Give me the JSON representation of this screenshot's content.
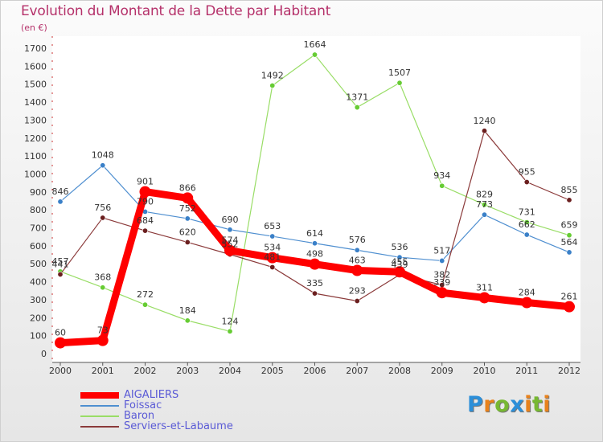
{
  "title": "Evolution du Montant de la Dette par Habitant",
  "subtitle": "(en €)",
  "logo": {
    "letters": [
      "P",
      "r",
      "o",
      "x",
      "i",
      "t",
      "i"
    ],
    "colors": [
      "#2c8fd9",
      "#e8821c",
      "#77b832",
      "#2c8fd9",
      "#e8821c",
      "#77b832",
      "#e8821c"
    ]
  },
  "chart_data": {
    "type": "line",
    "title": "Evolution du Montant de la Dette par Habitant",
    "ylabel": "(en €)",
    "xlabel": "",
    "ylim": [
      0,
      1700
    ],
    "yticks": [
      0,
      100,
      200,
      300,
      400,
      500,
      600,
      700,
      800,
      900,
      1000,
      1100,
      1200,
      1300,
      1400,
      1500,
      1600,
      1700
    ],
    "x": [
      "2000",
      "2001",
      "2002",
      "2003",
      "2004",
      "2005",
      "2006",
      "2007",
      "2008",
      "2009",
      "2010",
      "2011",
      "2012"
    ],
    "grid": false,
    "legend": "bottom-left",
    "series": [
      {
        "name": "AIGALIERS",
        "color": "#ff0000",
        "emphasis": true,
        "values": [
          60,
          73,
          901,
          866,
          574,
          534,
          498,
          463,
          455,
          339,
          311,
          284,
          261
        ],
        "labels": [
          "60",
          "73",
          "901",
          "866",
          "574",
          "534",
          "498",
          "463",
          "455",
          "339",
          "311",
          "284",
          "261"
        ]
      },
      {
        "name": "Foissac",
        "color": "#4f8fd0",
        "point_color": "#3a80c8",
        "values": [
          846,
          1048,
          790,
          752,
          690,
          653,
          614,
          576,
          536,
          517,
          773,
          662,
          564
        ],
        "labels": [
          "846",
          "1048",
          "790",
          "752",
          "690",
          "653",
          "614",
          "576",
          "536",
          "517",
          "773",
          "662",
          "564"
        ]
      },
      {
        "name": "Baron",
        "color": "#99dd66",
        "point_color": "#66cc33",
        "values": [
          457,
          368,
          272,
          184,
          124,
          1492,
          1664,
          1371,
          1507,
          934,
          829,
          731,
          659
        ],
        "labels": [
          "457",
          "368",
          "272",
          "184",
          "124",
          "1492",
          "1664",
          "1371",
          "1507",
          "934",
          "829",
          "731",
          "659"
        ]
      },
      {
        "name": "Serviers-et-Labaume",
        "color": "#8b3a3a",
        "point_color": "#6b1f1f",
        "values": [
          441,
          756,
          684,
          620,
          552,
          481,
          335,
          293,
          439,
          382,
          1240,
          955,
          855
        ],
        "labels": [
          "441",
          "756",
          "684",
          "620",
          "552",
          "481",
          "335",
          "293",
          "439",
          "382",
          "1240",
          "955",
          "855"
        ]
      }
    ]
  }
}
